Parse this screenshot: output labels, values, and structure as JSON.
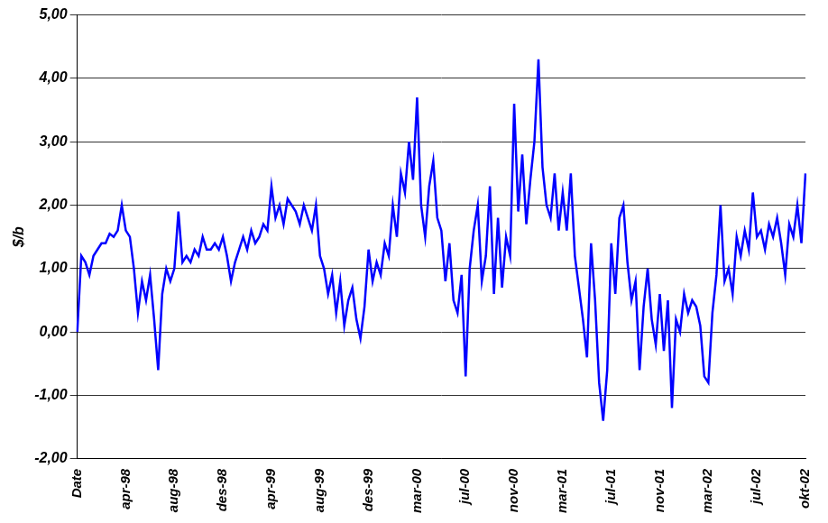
{
  "chart_data": {
    "type": "line",
    "y_label": "$/b",
    "categories": [
      "Date",
      null,
      null,
      null,
      null,
      null,
      null,
      null,
      null,
      null,
      null,
      null,
      "apr-98",
      null,
      null,
      null,
      null,
      null,
      null,
      null,
      null,
      null,
      null,
      null,
      "aug-98",
      null,
      null,
      null,
      null,
      null,
      null,
      null,
      null,
      null,
      null,
      null,
      "des-98",
      null,
      null,
      null,
      null,
      null,
      null,
      null,
      null,
      null,
      null,
      null,
      "apr-99",
      null,
      null,
      null,
      null,
      null,
      null,
      null,
      null,
      null,
      null,
      null,
      "aug-99",
      null,
      null,
      null,
      null,
      null,
      null,
      null,
      null,
      null,
      null,
      null,
      "des-99",
      null,
      null,
      null,
      null,
      null,
      null,
      null,
      null,
      null,
      null,
      null,
      "mar-00",
      null,
      null,
      null,
      null,
      null,
      null,
      null,
      null,
      null,
      null,
      null,
      "jul-00",
      null,
      null,
      null,
      null,
      null,
      null,
      null,
      null,
      null,
      null,
      null,
      "nov-00",
      null,
      null,
      null,
      null,
      null,
      null,
      null,
      null,
      null,
      null,
      null,
      "mar-01",
      null,
      null,
      null,
      null,
      null,
      null,
      null,
      null,
      null,
      null,
      null,
      "jul-01",
      null,
      null,
      null,
      null,
      null,
      null,
      null,
      null,
      null,
      null,
      null,
      "nov-01",
      null,
      null,
      null,
      null,
      null,
      null,
      null,
      null,
      null,
      null,
      null,
      "mar-02",
      null,
      null,
      null,
      null,
      null,
      null,
      null,
      null,
      null,
      null,
      null,
      "jul-02",
      null,
      null,
      null,
      null,
      null,
      null,
      null,
      null,
      null,
      null,
      null,
      "okt-02"
    ],
    "values": [
      0,
      1.2,
      1.1,
      0.9,
      1.2,
      1.3,
      1.4,
      1.4,
      1.55,
      1.5,
      1.6,
      2.0,
      1.6,
      1.5,
      1.0,
      0.3,
      0.8,
      0.5,
      0.9,
      0.2,
      -0.6,
      0.6,
      1.0,
      0.8,
      1.0,
      1.9,
      1.1,
      1.2,
      1.1,
      1.3,
      1.2,
      1.5,
      1.3,
      1.3,
      1.4,
      1.3,
      1.5,
      1.2,
      0.8,
      1.1,
      1.3,
      1.5,
      1.3,
      1.6,
      1.4,
      1.5,
      1.7,
      1.6,
      2.3,
      1.8,
      2.0,
      1.7,
      2.1,
      2.0,
      1.9,
      1.7,
      2.0,
      1.8,
      1.6,
      2.0,
      1.2,
      1.0,
      0.6,
      0.9,
      0.3,
      0.8,
      0.1,
      0.5,
      0.7,
      0.2,
      -0.1,
      0.4,
      1.3,
      0.8,
      1.1,
      0.9,
      1.4,
      1.2,
      2.0,
      1.5,
      2.5,
      2.2,
      3.0,
      2.4,
      3.7,
      2.0,
      1.5,
      2.3,
      2.7,
      1.8,
      1.6,
      0.8,
      1.4,
      0.5,
      0.3,
      0.9,
      -0.7,
      1.0,
      1.6,
      2.0,
      0.8,
      1.2,
      2.3,
      0.6,
      1.8,
      0.7,
      1.5,
      1.2,
      3.6,
      1.9,
      2.8,
      1.7,
      2.4,
      3.0,
      4.3,
      2.6,
      2.0,
      1.8,
      2.5,
      1.6,
      2.2,
      1.6,
      2.5,
      1.2,
      0.7,
      0.2,
      -0.4,
      1.4,
      0.5,
      -0.8,
      -1.4,
      -0.6,
      1.4,
      0.6,
      1.8,
      2.0,
      1.1,
      0.5,
      0.8,
      -0.6,
      0.4,
      1.0,
      0.2,
      -0.2,
      0.6,
      -0.3,
      0.5,
      -1.2,
      0.2,
      0.0,
      0.6,
      0.3,
      0.5,
      0.4,
      0.1,
      -0.7,
      -0.8,
      0.3,
      0.9,
      2.0,
      0.8,
      1.0,
      0.6,
      1.5,
      1.2,
      1.6,
      1.3,
      2.2,
      1.5,
      1.6,
      1.3,
      1.7,
      1.5,
      1.8,
      1.4,
      0.9,
      1.7,
      1.5,
      2.0,
      1.4,
      2.5
    ],
    "color": "#0000ff",
    "ylim": [
      -2,
      5
    ],
    "yticks": [
      {
        "value": -2,
        "label": "-2,00"
      },
      {
        "value": -1,
        "label": "-1,00"
      },
      {
        "value": 0,
        "label": "0,00"
      },
      {
        "value": 1,
        "label": "1,00"
      },
      {
        "value": 2,
        "label": "2,00"
      },
      {
        "value": 3,
        "label": "3,00"
      },
      {
        "value": 4,
        "label": "4,00"
      },
      {
        "value": 5,
        "label": "5,00"
      }
    ],
    "grid": true
  }
}
